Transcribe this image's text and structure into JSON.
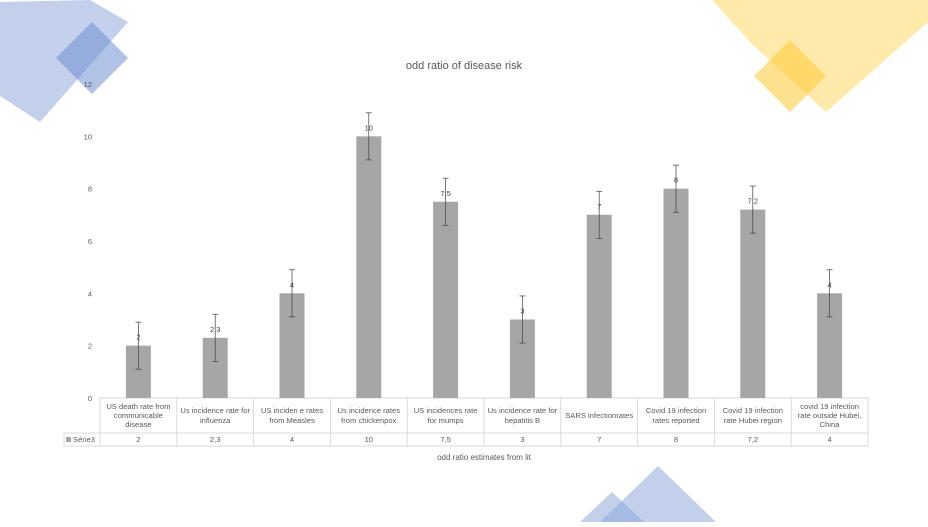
{
  "colors": {
    "bar": "#a6a6a6",
    "axis_text": "#595959",
    "grid_line": "#d9d9d9",
    "deco_blue": "#8faadc",
    "deco_yellow": "#ffd966"
  },
  "chart_data": {
    "type": "bar",
    "title": "odd ratio of disease risk",
    "xlabel": "odd ratio estimates from lit",
    "ylabel": "",
    "ylim": [
      0,
      12
    ],
    "yticks": [
      "0",
      "2",
      "4",
      "6",
      "8",
      "10",
      "12"
    ],
    "categories": [
      "US death rate from communicable disease",
      "Us incidence rate for influenza",
      "US inciden e rates from Measles",
      "Us incidence rates from chickenpox",
      "US incidences rate for mumps",
      "Us incidence rate for hepatitis B",
      "SARS infectionrates",
      "Covid 19  infection rates reported",
      "Covid 19 infection rate  Hubei region",
      "covid 19 infection rate outside Hubei, China"
    ],
    "series": [
      {
        "name": "Série3",
        "values": [
          2,
          2.3,
          4,
          10,
          7.5,
          3,
          7,
          8,
          7.2,
          4
        ],
        "labels": [
          "2",
          "2,3",
          "4",
          "10",
          "7,5",
          "3",
          "7",
          "8",
          "7,2",
          "4"
        ],
        "error": 0.9
      }
    ],
    "legend": "data-table",
    "grid": false
  }
}
